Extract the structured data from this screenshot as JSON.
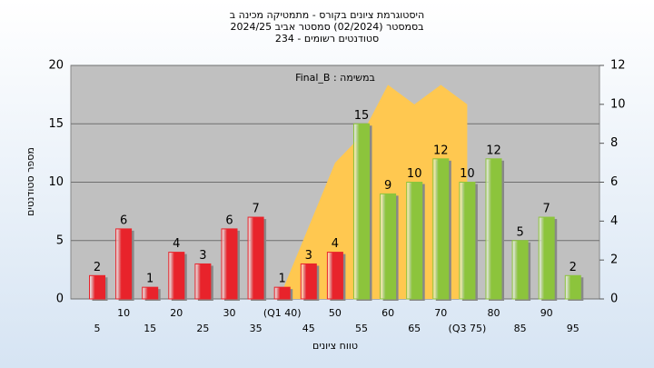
{
  "chart_data": {
    "type": "bar",
    "title": [
      "היסטוגרמת ציונים בקורס - מתמטיקה מכינה ב",
      "בסמסטר  (02/2024)  סמסטר אביב 2024/25",
      "סטודנטים רשומים - 234"
    ],
    "annotation": "Final_B : במשימה",
    "x_label": "טווח ציונים",
    "y_label": "מספר סטודנטים",
    "categories": [
      "5",
      "10",
      "15",
      "20",
      "25",
      "30",
      "35",
      "(Q1 40)",
      "45",
      "50",
      "55",
      "60",
      "65",
      "70",
      "(Q3 75)",
      "80",
      "85",
      "90",
      "95"
    ],
    "series": [
      {
        "type": "bar",
        "colors": [
          "#e8232b",
          "#e8232b",
          "#e8232b",
          "#e8232b",
          "#e8232b",
          "#e8232b",
          "#e8232b",
          "#e8232b",
          "#e8232b",
          "#e8232b",
          "#8cc43c",
          "#8cc43c",
          "#8cc43c",
          "#8cc43c",
          "#8cc43c",
          "#8cc43c",
          "#8cc43c",
          "#8cc43c",
          "#8cc43c"
        ],
        "values": [
          2,
          6,
          1,
          4,
          3,
          6,
          7,
          1,
          3,
          4,
          15,
          9,
          10,
          12,
          10,
          12,
          5,
          7,
          2
        ]
      },
      {
        "type": "area",
        "axis": "y2",
        "color": "#ffc850",
        "values": [
          null,
          null,
          null,
          null,
          null,
          null,
          null,
          0.4,
          3.7,
          7,
          8.4,
          11,
          10,
          11,
          10,
          null,
          null,
          null,
          null
        ]
      }
    ],
    "ylim": [
      0,
      20
    ],
    "yticks": [
      0,
      5,
      10,
      15,
      20
    ],
    "y2lim": [
      0,
      12
    ],
    "y2ticks": [
      0,
      2,
      4,
      6,
      8,
      10,
      12
    ],
    "grid": true
  }
}
